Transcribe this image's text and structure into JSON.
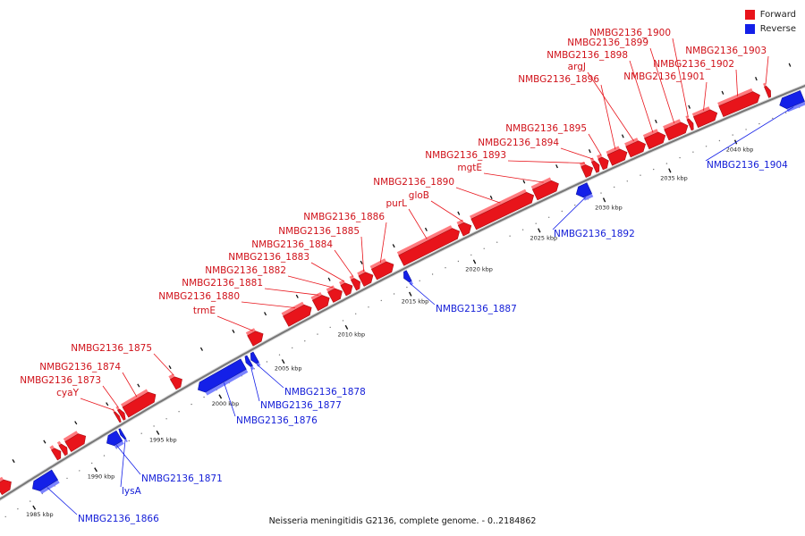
{
  "legend": [
    {
      "label": "Forward",
      "color": "#e8141b"
    },
    {
      "label": "Reverse",
      "color": "#1420e8"
    }
  ],
  "caption": "Neisseria meningitidis G2136, complete genome. - 0..2184862",
  "ticks": [
    {
      "kbp": 1985,
      "label": "1985 kbp"
    },
    {
      "kbp": 1990,
      "label": "1990 kbp"
    },
    {
      "kbp": 1995,
      "label": "1995 kbp"
    },
    {
      "kbp": 2000,
      "label": "2000 kbp"
    },
    {
      "kbp": 2005,
      "label": "2005 kbp"
    },
    {
      "kbp": 2010,
      "label": "2010 kbp"
    },
    {
      "kbp": 2015,
      "label": "2015 kbp"
    },
    {
      "kbp": 2020,
      "label": "2020 kbp"
    },
    {
      "kbp": 2025,
      "label": "2025 kbp"
    },
    {
      "kbp": 2030,
      "label": "2030 kbp"
    },
    {
      "kbp": 2035,
      "label": "2035 kbp"
    },
    {
      "kbp": 2040,
      "label": "2040 kbp"
    }
  ],
  "genes": [
    {
      "strand": "+",
      "start": 1983.6,
      "end": 1984.6,
      "label": ""
    },
    {
      "strand": "-",
      "start": 1985.6,
      "end": 1987.4,
      "label": "NMBG2136_1866"
    },
    {
      "strand": "+",
      "start": 1988.1,
      "end": 1988.6,
      "label": ""
    },
    {
      "strand": "+",
      "start": 1988.7,
      "end": 1989.1,
      "label": ""
    },
    {
      "strand": "+",
      "start": 1989.2,
      "end": 1990.6,
      "label": ""
    },
    {
      "strand": "-",
      "start": 1991.6,
      "end": 1992.6,
      "label": "NMBG2136_1871"
    },
    {
      "strand": "-",
      "start": 1992.7,
      "end": 1992.9,
      "label": "lysA"
    },
    {
      "strand": "+",
      "start": 1993.1,
      "end": 1993.3,
      "label": "cyaY"
    },
    {
      "strand": "+",
      "start": 1993.4,
      "end": 1993.7,
      "label": "NMBG2136_1873"
    },
    {
      "strand": "+",
      "start": 1993.8,
      "end": 1996.2,
      "label": "NMBG2136_1874"
    },
    {
      "strand": "+",
      "start": 1997.6,
      "end": 1998.3,
      "label": "NMBG2136_1875"
    },
    {
      "strand": "-",
      "start": 1998.9,
      "end": 2002.5,
      "label": "NMBG2136_1876"
    },
    {
      "strand": "-",
      "start": 2002.7,
      "end": 2003.0,
      "label": "NMBG2136_1877"
    },
    {
      "strand": "-",
      "start": 2003.1,
      "end": 2003.5,
      "label": "NMBG2136_1878"
    },
    {
      "strand": "+",
      "start": 2003.7,
      "end": 2004.7,
      "label": "trmE"
    },
    {
      "strand": "+",
      "start": 2006.5,
      "end": 2008.5,
      "label": "NMBG2136_1880"
    },
    {
      "strand": "+",
      "start": 2008.8,
      "end": 2009.9,
      "label": "NMBG2136_1881"
    },
    {
      "strand": "+",
      "start": 2010.0,
      "end": 2010.9,
      "label": "NMBG2136_1882"
    },
    {
      "strand": "+",
      "start": 2011.0,
      "end": 2011.7,
      "label": "NMBG2136_1883"
    },
    {
      "strand": "+",
      "start": 2011.8,
      "end": 2012.3,
      "label": "NMBG2136_1884"
    },
    {
      "strand": "+",
      "start": 2012.4,
      "end": 2013.3,
      "label": "NMBG2136_1885"
    },
    {
      "strand": "+",
      "start": 2013.4,
      "end": 2014.9,
      "label": "NMBG2136_1886"
    },
    {
      "strand": "-",
      "start": 2015.1,
      "end": 2015.5,
      "label": "NMBG2136_1887"
    },
    {
      "strand": "+",
      "start": 2015.5,
      "end": 2020.0,
      "label": "purL"
    },
    {
      "strand": "+",
      "start": 2020.1,
      "end": 2020.9,
      "label": "gloB"
    },
    {
      "strand": "+",
      "start": 2021.1,
      "end": 2025.7,
      "label": "NMBG2136_1890"
    },
    {
      "strand": "+",
      "start": 2025.8,
      "end": 2027.6,
      "label": "mgtE"
    },
    {
      "strand": "-",
      "start": 2028.4,
      "end": 2029.4,
      "label": "NMBG2136_1892"
    },
    {
      "strand": "+",
      "start": 2029.5,
      "end": 2030.2,
      "label": "NMBG2136_1893"
    },
    {
      "strand": "+",
      "start": 2030.3,
      "end": 2030.7,
      "label": "NMBG2136_1894"
    },
    {
      "strand": "+",
      "start": 2030.8,
      "end": 2031.4,
      "label": "NMBG2136_1895"
    },
    {
      "strand": "+",
      "start": 2031.5,
      "end": 2032.8,
      "label": "NMBG2136_1896"
    },
    {
      "strand": "+",
      "start": 2032.9,
      "end": 2034.2,
      "label": "argJ"
    },
    {
      "strand": "+",
      "start": 2034.3,
      "end": 2035.7,
      "label": "NMBG2136_1898"
    },
    {
      "strand": "+",
      "start": 2035.8,
      "end": 2037.4,
      "label": "NMBG2136_1899"
    },
    {
      "strand": "+",
      "start": 2037.5,
      "end": 2037.8,
      "label": "NMBG2136_1900"
    },
    {
      "strand": "+",
      "start": 2038.0,
      "end": 2039.6,
      "label": "NMBG2136_1901"
    },
    {
      "strand": "+",
      "start": 2039.9,
      "end": 2042.8,
      "label": "NMBG2136_1902"
    },
    {
      "strand": "+",
      "start": 2043.3,
      "end": 2043.6,
      "label": "NMBG2136_1903"
    },
    {
      "strand": "-",
      "start": 2043.8,
      "end": 2045.5,
      "label": "NMBG2136_1904"
    }
  ]
}
